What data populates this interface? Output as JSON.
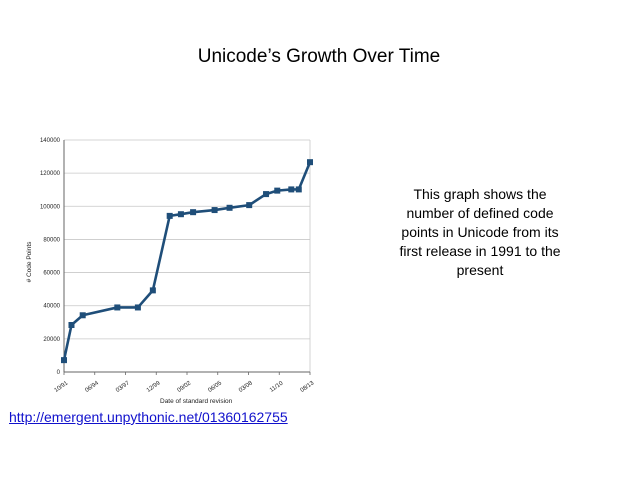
{
  "slide": {
    "title": "Unicode’s Growth Over Time",
    "description": "This graph shows the number of defined code points in Unicode from its first release in 1991 to the present",
    "link": "http://emergent.unpythonic.net/01360162755"
  },
  "colors": {
    "line": "#1f4e79",
    "marker": "#1f4e79",
    "grid": "#c8c8c8",
    "link": "#1111cc"
  },
  "chart_data": {
    "type": "line",
    "title": "",
    "xlabel": "Date of standard revision",
    "ylabel": "# Code Points",
    "ylim": [
      0,
      140000
    ],
    "yticks": [
      0,
      20000,
      40000,
      60000,
      80000,
      100000,
      120000,
      140000
    ],
    "xlim": [
      "1991-10",
      "2013-09"
    ],
    "xtick_labels": [
      "10/91",
      "06/94",
      "03/97",
      "12/99",
      "09/02",
      "06/05",
      "03/08",
      "11/10",
      "08/13"
    ],
    "grid": "horizontal",
    "legend": "none",
    "series": [
      {
        "x": [
          "1991-10",
          "1992-06",
          "1993-06",
          "1996-07",
          "1998-05",
          "1999-09",
          "2001-03",
          "2002-03",
          "2003-04",
          "2005-03",
          "2006-07",
          "2008-04",
          "2009-10",
          "2010-10",
          "2012-01",
          "2012-09",
          "2013-09"
        ],
        "values": [
          7161,
          28359,
          34233,
          38950,
          38952,
          49259,
          94205,
          95221,
          96447,
          97720,
          99089,
          100713,
          107361,
          109449,
          110181,
          110182,
          126623
        ]
      }
    ]
  }
}
